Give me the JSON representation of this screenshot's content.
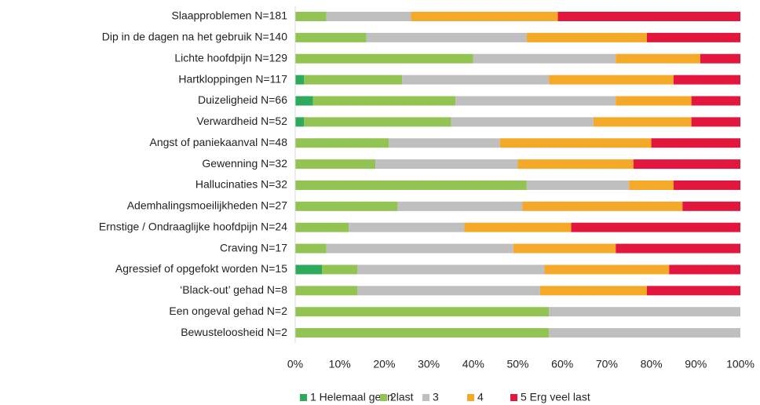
{
  "chart_data": {
    "type": "stacked-bar-horizontal",
    "categories": [
      "Slaapproblemen N=181",
      "Dip in de dagen na het gebruik N=140",
      "Lichte hoofdpijn N=129",
      "Hartkloppingen N=117",
      "Duizeligheid N=66",
      "Verwardheid N=52",
      "Angst of paniekaanval  N=48",
      "Gewenning  N=32",
      "Hallucinaties N=32",
      "Ademhalingsmoeilijkheden N=27",
      "Ernstige / Ondraaglijke hoofdpijn N=24",
      "Craving N=17",
      "Agressief of opgefokt worden  N=15",
      "‘Black-out’ gehad  N=8",
      "Een ongeval gehad N=2",
      "Bewusteloosheid N=2"
    ],
    "series": [
      {
        "name": "1 Helemaal geen last",
        "color": "#2eaa5c",
        "values": [
          0,
          0,
          0,
          2,
          4,
          2,
          0,
          0,
          0,
          0,
          0,
          0,
          6,
          0,
          0,
          0
        ]
      },
      {
        "name": "2",
        "color": "#92c353",
        "values": [
          7,
          16,
          40,
          22,
          32,
          33,
          21,
          18,
          52,
          23,
          12,
          7,
          8,
          14,
          57,
          57
        ]
      },
      {
        "name": "3",
        "color": "#bfbfbf",
        "values": [
          19,
          36,
          32,
          33,
          36,
          32,
          25,
          32,
          23,
          28,
          26,
          42,
          42,
          41,
          43,
          43
        ]
      },
      {
        "name": "4",
        "color": "#f4a929",
        "values": [
          33,
          27,
          19,
          28,
          17,
          22,
          34,
          26,
          10,
          36,
          24,
          23,
          28,
          24,
          0,
          0
        ]
      },
      {
        "name": "5 Erg veel last",
        "color": "#e3173e",
        "values": [
          41,
          21,
          9,
          15,
          11,
          11,
          20,
          24,
          15,
          13,
          38,
          28,
          16,
          21,
          0,
          0
        ]
      }
    ],
    "xlim": [
      0,
      100
    ],
    "xticks": [
      {
        "value": 0,
        "label": "0%"
      },
      {
        "value": 10,
        "label": "10%"
      },
      {
        "value": 20,
        "label": "20%"
      },
      {
        "value": 30,
        "label": "30%"
      },
      {
        "value": 40,
        "label": "40%"
      },
      {
        "value": 50,
        "label": "50%"
      },
      {
        "value": 60,
        "label": "60%"
      },
      {
        "value": 70,
        "label": "70%"
      },
      {
        "value": 80,
        "label": "80%"
      },
      {
        "value": 90,
        "label": "90%"
      },
      {
        "value": 100,
        "label": "100%"
      }
    ],
    "grid": false,
    "legend": "bottom"
  }
}
